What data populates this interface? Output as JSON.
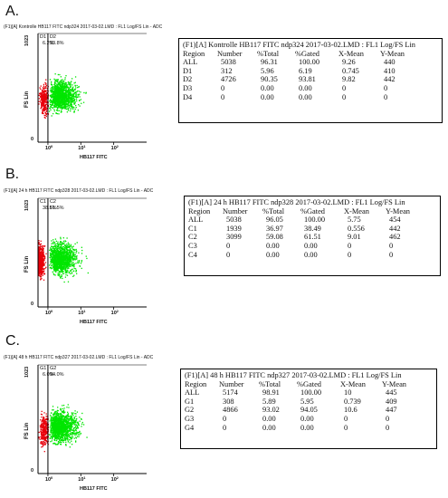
{
  "panels": [
    {
      "letter": "A.",
      "title": "(F1)[A] Kontrolle HB117 FITC ndp324 2017-03-02.LMD : FL1 Log/FS Lin - ADC",
      "ylabel": "FS Lin",
      "ytick_top": "1023",
      "ytick_bottom": "0",
      "xlabel": "HB117 FITC",
      "xticks": [
        "10",
        "1",
        "10",
        "2"
      ],
      "gate_left": {
        "name": "D1",
        "pct": "6.2%"
      },
      "gate_right": {
        "name": "D2",
        "pct": "93.8%"
      },
      "stats_title": "(F1)[A] Kontrolle HB117 FITC ndp324 2017-03-02.LMD : FL1 Log/FS Lin",
      "header": [
        "Region",
        "Number",
        "%Total",
        "%Gated",
        "X-Mean",
        "Y-Mean"
      ],
      "rows": [
        [
          "ALL",
          "5038",
          "96.31",
          "100.00",
          "9.26",
          "440"
        ],
        [
          "D1",
          "312",
          "5.96",
          "6.19",
          "0.745",
          "410"
        ],
        [
          "D2",
          "4726",
          "90.35",
          "93.81",
          "9.82",
          "442"
        ],
        [
          "D3",
          "0",
          "0.00",
          "0.00",
          "0",
          "0"
        ],
        [
          "D4",
          "0",
          "0.00",
          "0.00",
          "0",
          "0"
        ]
      ]
    },
    {
      "letter": "B.",
      "title": "(F1)[A] 24 h HB117 FITC ndp328 2017-03-02.LMD : FL1 Log/FS Lin - ADC",
      "ylabel": "FS Lin",
      "ytick_top": "1023",
      "ytick_bottom": "0",
      "xlabel": "HB117 FITC",
      "xticks": [
        "10",
        "1",
        "10",
        "2"
      ],
      "gate_left": {
        "name": "C1",
        "pct": "38.5%"
      },
      "gate_right": {
        "name": "C2",
        "pct": "61.5%"
      },
      "stats_title": "(F1)[A] 24 h HB117 FITC ndp328 2017-03-02.LMD : FL1 Log/FS Lin",
      "header": [
        "Region",
        "Number",
        "%Total",
        "%Gated",
        "X-Mean",
        "Y-Mean"
      ],
      "rows": [
        [
          "ALL",
          "5038",
          "96.05",
          "100.00",
          "5.75",
          "454"
        ],
        [
          "C1",
          "1939",
          "36.97",
          "38.49",
          "0.556",
          "442"
        ],
        [
          "C2",
          "3099",
          "59.08",
          "61.51",
          "9.01",
          "462"
        ],
        [
          "C3",
          "0",
          "0.00",
          "0.00",
          "0",
          "0"
        ],
        [
          "C4",
          "0",
          "0.00",
          "0.00",
          "0",
          "0"
        ]
      ]
    },
    {
      "letter": "C.",
      "title": "(F1)[A] 48 h HB117 FITC ndp327 2017-03-02.LMD : FL1 Log/FS Lin - ADC",
      "ylabel": "FS Lin",
      "ytick_top": "1023",
      "ytick_bottom": "0",
      "xlabel": "HB117 FITC",
      "xticks": [
        "10",
        "1",
        "10",
        "2"
      ],
      "gate_left": {
        "name": "G1",
        "pct": "6.0%"
      },
      "gate_right": {
        "name": "G2",
        "pct": "94.0%"
      },
      "stats_title": "(F1)[A] 48 h HB117 FITC ndp327 2017-03-02.LMD : FL1 Log/FS Lin",
      "header": [
        "Region",
        "Number",
        "%Total",
        "%Gated",
        "X-Mean",
        "Y-Mean"
      ],
      "rows": [
        [
          "ALL",
          "5174",
          "98.91",
          "100.00",
          "10",
          "445"
        ],
        [
          "G1",
          "308",
          "5.89",
          "5.95",
          "0.739",
          "409"
        ],
        [
          "G2",
          "4866",
          "93.02",
          "94.05",
          "10.6",
          "447"
        ],
        [
          "G3",
          "0",
          "0.00",
          "0.00",
          "0",
          "0"
        ],
        [
          "G4",
          "0",
          "0.00",
          "0.00",
          "0",
          "0"
        ]
      ]
    }
  ],
  "chart_data": [
    {
      "type": "scatter",
      "title": "(F1)[A] Kontrolle HB117 FITC ndp324 2017-03-02.LMD : FL1 Log/FS Lin - ADC",
      "xlabel": "HB117 FITC",
      "ylabel": "FS Lin",
      "x_scale": "log",
      "xlim": [
        0.5,
        1000
      ],
      "ylim": [
        0,
        1023
      ],
      "gate_x": 1,
      "series": [
        {
          "name": "D1",
          "color": "#e8000b",
          "count": 312,
          "x_mean": 0.745,
          "y_mean": 410,
          "pct": 6.2
        },
        {
          "name": "D2",
          "color": "#00e600",
          "count": 4726,
          "x_mean": 9.82,
          "y_mean": 442,
          "pct": 93.8
        }
      ]
    },
    {
      "type": "scatter",
      "title": "(F1)[A] 24 h HB117 FITC ndp328 2017-03-02.LMD : FL1 Log/FS Lin - ADC",
      "xlabel": "HB117 FITC",
      "ylabel": "FS Lin",
      "x_scale": "log",
      "xlim": [
        0.5,
        1000
      ],
      "ylim": [
        0,
        1023
      ],
      "gate_x": 1,
      "series": [
        {
          "name": "C1",
          "color": "#e8000b",
          "count": 1939,
          "x_mean": 0.556,
          "y_mean": 442,
          "pct": 38.5
        },
        {
          "name": "C2",
          "color": "#00e600",
          "count": 3099,
          "x_mean": 9.01,
          "y_mean": 462,
          "pct": 61.5
        }
      ]
    },
    {
      "type": "scatter",
      "title": "(F1)[A] 48 h HB117 FITC ndp327 2017-03-02.LMD : FL1 Log/FS Lin - ADC",
      "xlabel": "HB117 FITC",
      "ylabel": "FS Lin",
      "x_scale": "log",
      "xlim": [
        0.5,
        1000
      ],
      "ylim": [
        0,
        1023
      ],
      "gate_x": 1,
      "series": [
        {
          "name": "G1",
          "color": "#e8000b",
          "count": 308,
          "x_mean": 0.739,
          "y_mean": 409,
          "pct": 6.0
        },
        {
          "name": "G2",
          "color": "#00e600",
          "count": 4866,
          "x_mean": 10.6,
          "y_mean": 447,
          "pct": 94.0
        }
      ]
    }
  ]
}
